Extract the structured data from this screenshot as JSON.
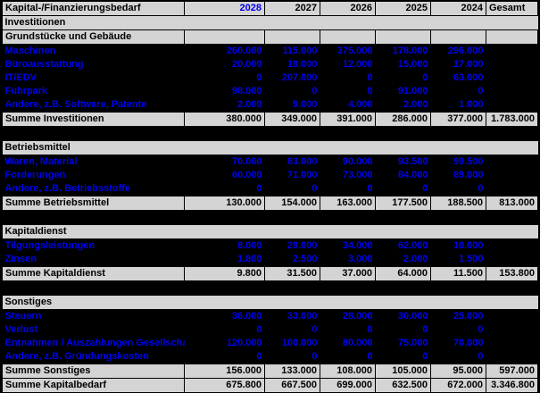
{
  "title": "Kapital-/Finanzierungsbedarf",
  "colors": {
    "background": "#000000",
    "cell_gray": "#d4d4d4",
    "accent_blue": "#0000ee",
    "text_black": "#000000"
  },
  "table": {
    "columns": [
      "Kapital-/Finanzierungsbedarf",
      "2028",
      "2027",
      "2026",
      "2025",
      "2024",
      "Gesamt"
    ],
    "rows": [
      {
        "type": "section",
        "label": "Investitionen",
        "values": [
          "",
          "",
          "",
          "",
          "",
          ""
        ]
      },
      {
        "type": "subheader",
        "label": "Grundstücke und Gebäude",
        "values": [
          "",
          "",
          "",
          "",
          "",
          ""
        ]
      },
      {
        "type": "data",
        "label": "Maschinen",
        "values": [
          "260.000",
          "115.000",
          "375.000",
          "178.000",
          "296.000",
          ""
        ]
      },
      {
        "type": "data",
        "label": "Büroausstattung",
        "values": [
          "20.000",
          "18.000",
          "12.000",
          "15.000",
          "17.000",
          ""
        ]
      },
      {
        "type": "data",
        "label": "IT/EDV",
        "values": [
          "0",
          "207.000",
          "0",
          "0",
          "63.000",
          ""
        ]
      },
      {
        "type": "data",
        "label": "Fuhrpark",
        "values": [
          "98.000",
          "0",
          "0",
          "91.000",
          "0",
          ""
        ]
      },
      {
        "type": "data",
        "label": "Andere, z.B. Software, Patente",
        "values": [
          "2.000",
          "9.000",
          "4.000",
          "2.000",
          "1.000",
          ""
        ]
      },
      {
        "type": "sum",
        "label": "Summe Investitionen",
        "values": [
          "380.000",
          "349.000",
          "391.000",
          "286.000",
          "377.000",
          "1.783.000"
        ]
      },
      {
        "type": "blank",
        "label": "",
        "values": [
          "",
          "",
          "",
          "",
          "",
          ""
        ]
      },
      {
        "type": "section",
        "label": "Betriebsmittel",
        "values": [
          "",
          "",
          "",
          "",
          "",
          ""
        ]
      },
      {
        "type": "data",
        "label": "Waren, Material",
        "values": [
          "70.000",
          "83.000",
          "90.000",
          "93.500",
          "99.500",
          ""
        ]
      },
      {
        "type": "data",
        "label": "Forderungen",
        "values": [
          "60.000",
          "71.000",
          "73.000",
          "84.000",
          "89.000",
          ""
        ]
      },
      {
        "type": "data",
        "label": "Andere, z.B. Betriebsstoffe",
        "values": [
          "0",
          "0",
          "0",
          "0",
          "0",
          ""
        ]
      },
      {
        "type": "sum",
        "label": "Summe Betriebsmittel",
        "values": [
          "130.000",
          "154.000",
          "163.000",
          "177.500",
          "188.500",
          "813.000"
        ]
      },
      {
        "type": "blank",
        "label": "",
        "values": [
          "",
          "",
          "",
          "",
          "",
          ""
        ]
      },
      {
        "type": "section",
        "label": "Kapitaldienst",
        "values": [
          "",
          "",
          "",
          "",
          "",
          ""
        ]
      },
      {
        "type": "data",
        "label": "Tilgungsleistungen",
        "values": [
          "8.000",
          "29.000",
          "34.000",
          "62.000",
          "10.000",
          ""
        ]
      },
      {
        "type": "data",
        "label": "Zinsen",
        "values": [
          "1.800",
          "2.500",
          "3.000",
          "2.000",
          "1.500",
          ""
        ]
      },
      {
        "type": "sum",
        "label": "Summe Kapitaldienst",
        "values": [
          "9.800",
          "31.500",
          "37.000",
          "64.000",
          "11.500",
          "153.800"
        ]
      },
      {
        "type": "blank",
        "label": "",
        "values": [
          "",
          "",
          "",
          "",
          "",
          ""
        ]
      },
      {
        "type": "section",
        "label": "Sonstiges",
        "values": [
          "",
          "",
          "",
          "",
          "",
          ""
        ]
      },
      {
        "type": "data",
        "label": "Steuern",
        "values": [
          "36.000",
          "33.000",
          "28.000",
          "30.000",
          "25.000",
          ""
        ]
      },
      {
        "type": "data",
        "label": "Verlust",
        "values": [
          "0",
          "0",
          "0",
          "0",
          "0",
          ""
        ]
      },
      {
        "type": "data",
        "label": "Entnahmen / Auszahlungen Gesellschafter",
        "values": [
          "120.000",
          "100.000",
          "80.000",
          "75.000",
          "70.000",
          ""
        ]
      },
      {
        "type": "data",
        "label": "Andere, z.B. Gründungskosten",
        "values": [
          "0",
          "0",
          "0",
          "0",
          "0",
          ""
        ]
      },
      {
        "type": "sum",
        "label": "Summe Sonstiges",
        "values": [
          "156.000",
          "133.000",
          "108.000",
          "105.000",
          "95.000",
          "597.000"
        ]
      },
      {
        "type": "sum",
        "label": "Summe Kapitalbedarf",
        "values": [
          "675.800",
          "667.500",
          "699.000",
          "632.500",
          "672.000",
          "3.346.800"
        ]
      }
    ]
  }
}
